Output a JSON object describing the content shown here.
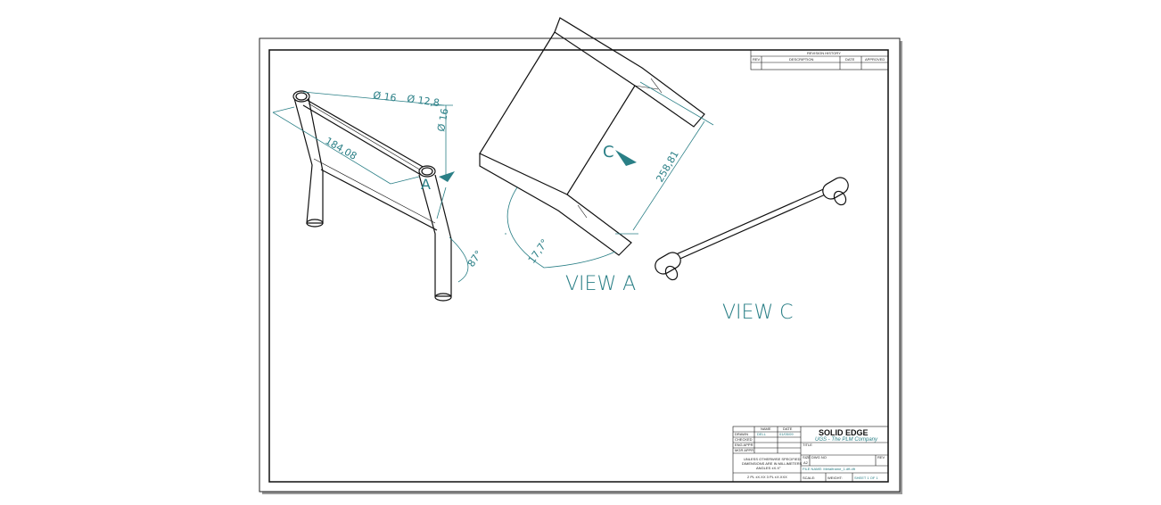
{
  "dimensions": {
    "dia_16": "Ø 16",
    "dia_12_8": "Ø 12,8",
    "dia_16b": "Ø 16",
    "length_184": "184,08",
    "length_258": "258,81",
    "angle_87": "87°",
    "angle_177": "17,7°"
  },
  "labels": {
    "view_a": "VIEW A",
    "view_c": "VIEW C",
    "marker_a": "A",
    "marker_c": "C"
  },
  "revision_block": {
    "title": "REVISION HISTORY",
    "headers": [
      "REV",
      "DESCRIPTION",
      "DATE",
      "APPROVED"
    ]
  },
  "title_block": {
    "company": "SOLID EDGE",
    "tagline": "UGS - The PLM Company",
    "col_name": "NAME",
    "col_date": "DATE",
    "rows": [
      "DRAWN",
      "CHECKED",
      "ENG APPR",
      "MGR APPR"
    ],
    "drawn_name": "DELL",
    "drawn_date": "01/05/09",
    "notes": [
      "UNLESS OTHERWISE SPECIFIED",
      "DIMENSIONS ARE IN MILLIMETERS",
      "ANGLES ±X.X°",
      "2 PL ±X.XX 3 PL ±X.XXX"
    ],
    "title_label": "TITLE",
    "size_label": "SIZE",
    "size_value": "A2",
    "dwg_label": "DWG NO",
    "rev_label": "REV",
    "file_name": "FILE NAME: Metalframe_1.dft.dft",
    "scale_label": "SCALE:",
    "weight_label": "WEIGHT:",
    "sheet_label": "SHEET 1 OF 1"
  }
}
